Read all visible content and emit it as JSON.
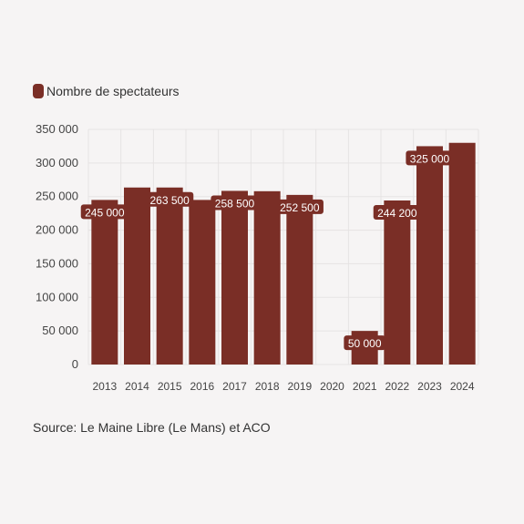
{
  "colors": {
    "background": "#f6f4f4",
    "bar": "#7a2e26",
    "grid": "#e6e3e3",
    "text": "#333333"
  },
  "legend": {
    "label": "Nombre de spectateurs",
    "placement": "top-left"
  },
  "source": {
    "text": "Source: Le Maine Libre (Le Mans) et ACO"
  },
  "chart_data": {
    "type": "bar",
    "title": "",
    "xlabel": "",
    "ylabel": "",
    "ylim": [
      0,
      350000
    ],
    "yticks": [
      0,
      50000,
      100000,
      150000,
      200000,
      250000,
      300000,
      350000
    ],
    "ytick_labels": [
      "0",
      "50 000",
      "100 000",
      "150 000",
      "200 000",
      "250 000",
      "300 000",
      "350 000"
    ],
    "grid": true,
    "categories": [
      "2013",
      "2014",
      "2015",
      "2016",
      "2017",
      "2018",
      "2019",
      "2020",
      "2021",
      "2022",
      "2023",
      "2024"
    ],
    "series": [
      {
        "name": "Nombre de spectateurs",
        "values": [
          245000,
          263500,
          263500,
          245000,
          258500,
          258000,
          252500,
          null,
          50000,
          244200,
          325000,
          330000
        ],
        "data_labels": [
          "245 000",
          null,
          "263 500",
          null,
          "258 500",
          null,
          "252 500",
          null,
          "50 000",
          "244 200",
          "325 000",
          null
        ]
      }
    ]
  }
}
